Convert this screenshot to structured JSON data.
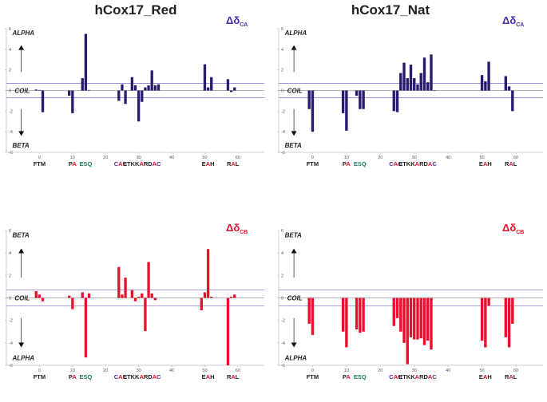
{
  "figure": {
    "x_ticks": [
      "0",
      "10",
      "20",
      "30",
      "40",
      "50",
      "60"
    ],
    "motif_colors": {
      "black": "#222222",
      "red": "#e8112d",
      "green": "#1e7d5c",
      "purple": "#5b2d8e"
    },
    "motifs": [
      {
        "x": 0.0,
        "segments": [
          {
            "text": "FTM",
            "color": "black"
          }
        ]
      },
      {
        "x": 10.0,
        "segments": [
          {
            "text": "P",
            "color": "black"
          },
          {
            "text": "A",
            "color": "red"
          }
        ]
      },
      {
        "x": 14.0,
        "segments": [
          {
            "text": "ESQ",
            "color": "green"
          }
        ]
      },
      {
        "x": 24.5,
        "segments": [
          {
            "text": "C",
            "color": "purple"
          },
          {
            "text": "A",
            "color": "red"
          },
          {
            "text": "C",
            "color": "purple"
          }
        ]
      },
      {
        "x": 31.0,
        "segments": [
          {
            "text": "ETKK",
            "color": "black"
          },
          {
            "text": "A",
            "color": "red"
          },
          {
            "text": "RD",
            "color": "black"
          },
          {
            "text": "A",
            "color": "red"
          },
          {
            "text": "C",
            "color": "purple"
          }
        ]
      },
      {
        "x": 51.0,
        "segments": [
          {
            "text": "E",
            "color": "black"
          },
          {
            "text": "A",
            "color": "red"
          },
          {
            "text": "H",
            "color": "black"
          }
        ]
      },
      {
        "x": 58.5,
        "segments": [
          {
            "text": "R",
            "color": "black"
          },
          {
            "text": "A",
            "color": "red"
          },
          {
            "text": "L",
            "color": "black"
          }
        ]
      }
    ]
  },
  "chart_data": [
    {
      "type": "bar",
      "title": "hCox17_Red",
      "delta_label": "Δδ",
      "delta_sub": "CA",
      "top_label": "ALPHA",
      "bottom_label": "BETA",
      "coil_label": "COIL",
      "bar_color": "#2b1a70",
      "delta_color": "#4b2aa8",
      "xlim": [
        -10,
        68
      ],
      "ylim": [
        -6,
        6
      ],
      "y_ticks": [
        6,
        4,
        2,
        0,
        -2,
        -4,
        -6
      ],
      "threshold": 0.7,
      "residues": [
        -1,
        0,
        1,
        9,
        10,
        13,
        14,
        15,
        24,
        25,
        26,
        28,
        29,
        30,
        31,
        32,
        33,
        34,
        35,
        36,
        50,
        51,
        52,
        57,
        58,
        59
      ],
      "values": [
        0.1,
        0.05,
        -2.1,
        -0.5,
        -2.2,
        1.2,
        5.5,
        0.05,
        -1.0,
        0.6,
        -1.3,
        1.3,
        0.5,
        -3.0,
        -1.1,
        0.3,
        0.5,
        1.95,
        0.5,
        0.6,
        2.55,
        0.3,
        1.3,
        1.1,
        -0.15,
        0.3
      ]
    },
    {
      "type": "bar",
      "title": "hCox17_Nat",
      "delta_label": "Δδ",
      "delta_sub": "CA",
      "top_label": "ALPHA",
      "bottom_label": "BETA",
      "coil_label": "COIL",
      "bar_color": "#2b1a70",
      "delta_color": "#4b2aa8",
      "xlim": [
        -10,
        68
      ],
      "ylim": [
        -6,
        6
      ],
      "y_ticks": [
        6,
        4,
        2,
        0,
        -2,
        -4,
        -6
      ],
      "threshold": 0.7,
      "residues": [
        -1,
        0,
        9,
        10,
        13,
        14,
        15,
        24,
        25,
        26,
        27,
        28,
        29,
        30,
        31,
        32,
        33,
        34,
        35,
        36,
        50,
        51,
        52,
        57,
        58,
        59
      ],
      "values": [
        -1.8,
        -4.0,
        -2.2,
        -3.9,
        -0.5,
        -1.8,
        -1.8,
        -2.0,
        -2.1,
        1.7,
        2.7,
        1.2,
        2.5,
        1.2,
        0.6,
        1.7,
        3.2,
        0.8,
        3.5,
        0.0,
        1.5,
        0.9,
        2.8,
        1.4,
        0.4,
        -2.0
      ]
    },
    {
      "type": "bar",
      "title": "",
      "delta_label": "Δδ",
      "delta_sub": "CB",
      "top_label": "BETA",
      "bottom_label": "ALPHA",
      "coil_label": "COIL",
      "bar_color": "#e8112d",
      "delta_color": "#e8112d",
      "xlim": [
        -10,
        68
      ],
      "ylim": [
        -6,
        6
      ],
      "y_ticks": [
        6,
        4,
        2,
        0,
        -2,
        -4,
        -6
      ],
      "threshold": 0.7,
      "residues": [
        -1,
        0,
        1,
        9,
        10,
        13,
        14,
        15,
        24,
        25,
        26,
        28,
        29,
        30,
        31,
        32,
        33,
        34,
        35,
        49,
        50,
        51,
        52,
        57,
        58,
        59
      ],
      "values": [
        0.6,
        0.3,
        -0.3,
        0.2,
        -1.0,
        0.5,
        -5.3,
        0.4,
        2.75,
        0.3,
        1.8,
        0.7,
        -0.3,
        0.1,
        0.4,
        -2.95,
        3.2,
        0.4,
        -0.2,
        -1.1,
        0.5,
        4.35,
        0.1,
        -6.0,
        0.1,
        0.3
      ]
    },
    {
      "type": "bar",
      "title": "",
      "delta_label": "Δδ",
      "delta_sub": "CB",
      "top_label": "BETA",
      "bottom_label": "ALPHA",
      "coil_label": "COIL",
      "bar_color": "#e8112d",
      "delta_color": "#e8112d",
      "xlim": [
        -10,
        68
      ],
      "ylim": [
        -6,
        6
      ],
      "y_ticks": [
        6,
        4,
        2,
        0,
        -2,
        -4,
        -6
      ],
      "threshold": 0.7,
      "residues": [
        -1,
        0,
        9,
        10,
        13,
        14,
        15,
        24,
        25,
        26,
        27,
        28,
        29,
        30,
        31,
        32,
        33,
        34,
        35,
        50,
        51,
        52,
        57,
        58,
        59
      ],
      "values": [
        -2.3,
        -3.3,
        -3.0,
        -4.4,
        -2.8,
        -3.1,
        -3.0,
        -2.5,
        -1.8,
        -3.0,
        -4.0,
        -5.9,
        -3.5,
        -3.7,
        -3.7,
        -3.6,
        -4.2,
        -3.8,
        -4.6,
        -3.8,
        -4.4,
        -0.7,
        -3.5,
        -4.4,
        -2.3
      ]
    }
  ]
}
